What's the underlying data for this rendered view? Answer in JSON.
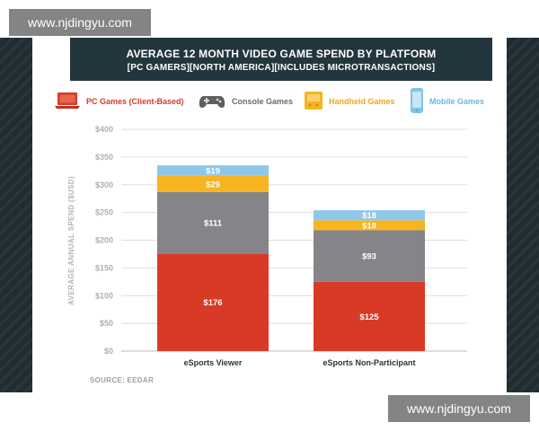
{
  "watermark": {
    "top": "www.njdingyu.com",
    "bottom": "www.njdingyu.com"
  },
  "header": {
    "title": "AVERAGE 12 MONTH VIDEO GAME SPEND BY PLATFORM",
    "subtitle": "[PC GAMERS][NORTH AMERICA][INCLUDES MICROTRANSACTIONS]"
  },
  "legend": [
    {
      "label": "PC Games (Client-Based)",
      "icon": "laptop-icon",
      "color": "#d93a26"
    },
    {
      "label": "Console Games",
      "icon": "gamepad-icon",
      "color": "#5f5f5f"
    },
    {
      "label": "Handheld Games",
      "icon": "handheld-icon",
      "color": "#f7b421"
    },
    {
      "label": "Mobile Games",
      "icon": "phone-icon",
      "color": "#7fc3e8"
    }
  ],
  "source": "SOURCE: EEDAR",
  "chart_data": {
    "type": "bar",
    "stacked": true,
    "title": "AVERAGE 12 MONTH VIDEO GAME SPEND BY PLATFORM",
    "subtitle": "[PC GAMERS][NORTH AMERICA][INCLUDES MICROTRANSACTIONS]",
    "categories": [
      "eSports Viewer",
      "eSports Non-Participant"
    ],
    "ylabel": "AVERAGE ANNUAL SPEND ($USD)",
    "ylim": [
      0,
      400
    ],
    "yticks": [
      "$0",
      "$50",
      "$100",
      "$150",
      "$200",
      "$250",
      "$300",
      "$350",
      "$400"
    ],
    "grid": true,
    "legend_position": "top",
    "series": [
      {
        "name": "PC Games (Client-Based)",
        "color": "#d93a26",
        "values": [
          176,
          125
        ],
        "labels": [
          "$176",
          "$125"
        ]
      },
      {
        "name": "Console Games",
        "color": "#858488",
        "values": [
          111,
          93
        ],
        "labels": [
          "$111",
          "$93"
        ]
      },
      {
        "name": "Handheld Games",
        "color": "#f7b421",
        "values": [
          29,
          18
        ],
        "labels": [
          "$29",
          "$18"
        ]
      },
      {
        "name": "Mobile Games",
        "color": "#8ec7ea",
        "values": [
          19,
          18
        ],
        "labels": [
          "$19",
          "$18"
        ]
      }
    ]
  }
}
